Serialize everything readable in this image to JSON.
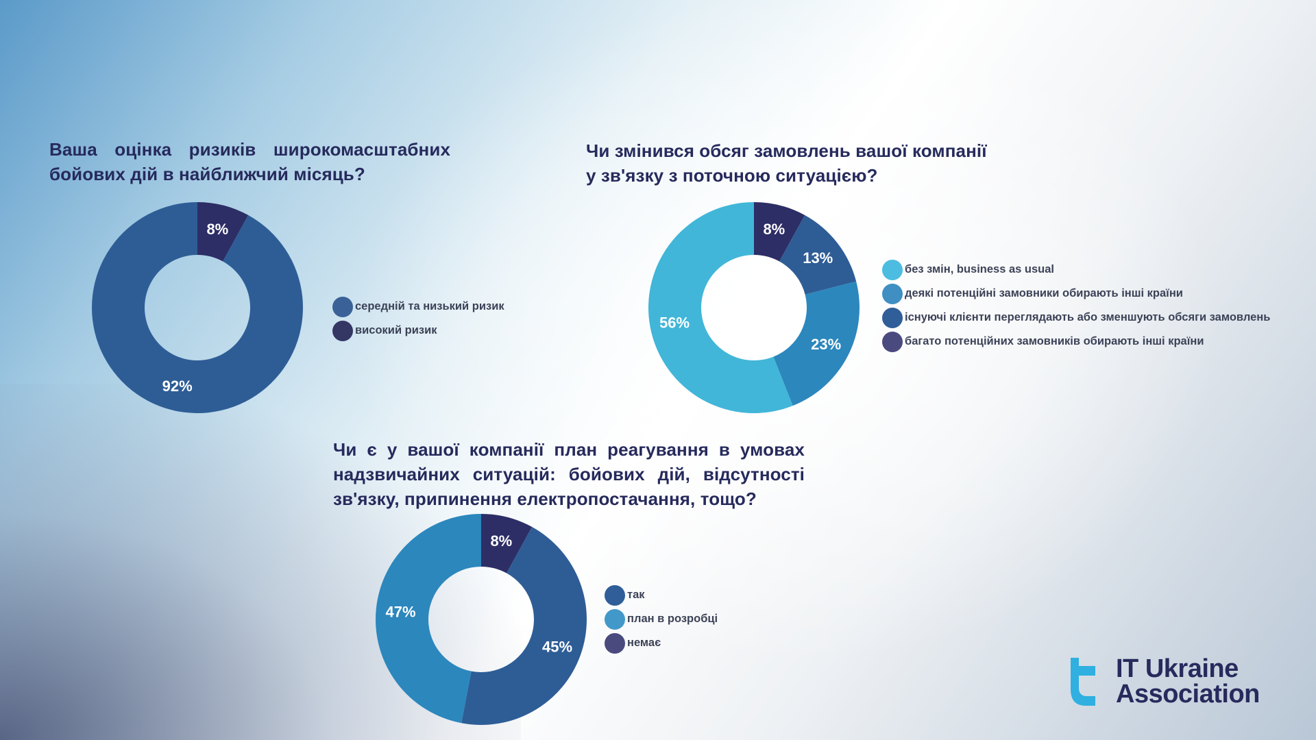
{
  "charts": [
    {
      "title": "Ваша оцінка ризиків широкомасштабних бойових дій в найближчий місяць?"
    },
    {
      "title_line1": "Чи змінився обсяг замовлень вашої компанії",
      "title_line2": "у зв'язку з поточною ситуацією?"
    },
    {
      "title": "Чи є у вашої компанії план реагування в умовах надзвичайних ситуацій: бойових дій, відсутності зв'язку, припинення електропостачання, тощо?"
    }
  ],
  "chart_data": [
    {
      "type": "pie",
      "variant": "donut",
      "title": "Ваша оцінка ризиків широкомасштабних бойових дій в найближчий місяць?",
      "slices": [
        {
          "label": "середній та низький ризик",
          "value": 92,
          "display": "92%",
          "color": "#2e5d96"
        },
        {
          "label": "високий ризик",
          "value": 8,
          "display": "8%",
          "color": "#2d2e66"
        }
      ],
      "legend": [
        {
          "label": "середній та низький ризик",
          "color": "#3a6298"
        },
        {
          "label": "високий ризик",
          "color": "#343664"
        }
      ],
      "legend_position": "right"
    },
    {
      "type": "pie",
      "variant": "donut",
      "title": "Чи змінився обсяг замовлень вашої компанії у зв'язку з поточною ситуацією?",
      "slices": [
        {
          "label": "без змін, business as usual",
          "value": 56,
          "display": "56%",
          "color": "#41b6d8"
        },
        {
          "label": "деякі потенційні замовники обирають інші країни",
          "value": 23,
          "display": "23%",
          "color": "#2c87bd"
        },
        {
          "label": "існуючі клієнти переглядають або зменшують обсяги замовлень",
          "value": 13,
          "display": "13%",
          "color": "#2e5d96"
        },
        {
          "label": "багато потенційних замовників обирають інші країни",
          "value": 8,
          "display": "8%",
          "color": "#2d2e66"
        }
      ],
      "legend": [
        {
          "label": "без змін, business as usual",
          "color": "#4cbde0"
        },
        {
          "label": "деякі потенційні замовники обирають інші країни",
          "color": "#3f8fc3"
        },
        {
          "label": "існуючі клієнти переглядають або зменшують обсяги замовлень",
          "color": "#2f5e99"
        },
        {
          "label": "багато потенційних замовників обирають інші країни",
          "color": "#4a4a7f"
        }
      ],
      "legend_position": "right"
    },
    {
      "type": "pie",
      "variant": "donut",
      "title": "Чи є у вашої компанії план реагування в умовах надзвичайних ситуацій: бойових дій, відсутності зв'язку, припинення електропостачання, тощо?",
      "slices": [
        {
          "label": "так",
          "value": 45,
          "display": "45%",
          "color": "#2e5d96"
        },
        {
          "label": "план в розробці",
          "value": 47,
          "display": "47%",
          "color": "#2c87bd"
        },
        {
          "label": "немає",
          "value": 8,
          "display": "8%",
          "color": "#2d2e66"
        }
      ],
      "legend": [
        {
          "label": "так",
          "color": "#2f5e99"
        },
        {
          "label": "план в розробці",
          "color": "#4298c9"
        },
        {
          "label": "немає",
          "color": "#4a4a7f"
        }
      ],
      "legend_position": "right"
    }
  ],
  "logo": {
    "line1": "IT Ukraine",
    "line2": "Association",
    "color": "#262a5c",
    "accent": "#2fb0e0"
  }
}
